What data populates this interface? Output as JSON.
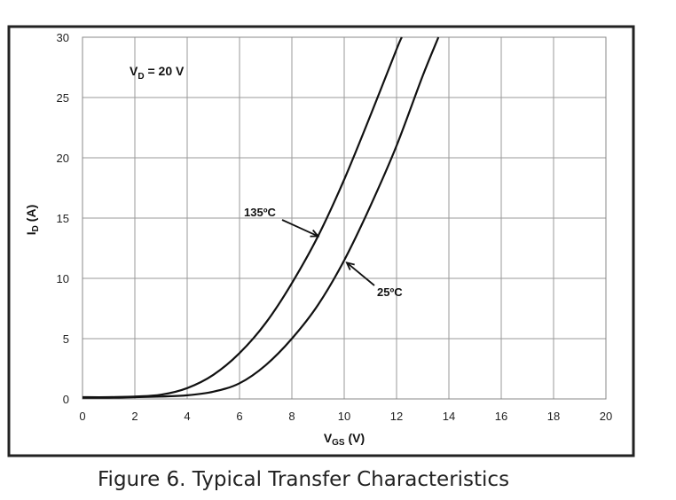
{
  "caption": "Figure 6. Typical Transfer Characteristics",
  "chart_data": {
    "type": "line",
    "title": "",
    "xlabel": "V",
    "xlabel_sub": "GS",
    "xlabel_unit": " (V)",
    "ylabel": "I",
    "ylabel_sub": "D",
    "ylabel_unit": " (A)",
    "xlim": [
      0,
      20
    ],
    "ylim": [
      0,
      30
    ],
    "xticks": [
      0,
      2,
      4,
      6,
      8,
      10,
      12,
      14,
      16,
      18,
      20
    ],
    "yticks": [
      0,
      5,
      10,
      15,
      20,
      25,
      30
    ],
    "grid": true,
    "condition": {
      "prefix": "V",
      "sub": "D",
      "text": " = 20 V"
    },
    "series": [
      {
        "name": "135ºC",
        "x": [
          0,
          1,
          2,
          3,
          4,
          5,
          6,
          7,
          8,
          9,
          10,
          11,
          12,
          12.2
        ],
        "y": [
          0.15,
          0.15,
          0.2,
          0.35,
          0.9,
          2.0,
          3.8,
          6.3,
          9.6,
          13.5,
          18.2,
          23.5,
          29.0,
          30.0
        ]
      },
      {
        "name": "25ºC",
        "x": [
          0,
          1,
          2,
          3,
          4,
          5,
          6,
          7,
          8,
          9,
          10,
          11,
          12,
          13,
          13.6
        ],
        "y": [
          0.1,
          0.1,
          0.15,
          0.2,
          0.3,
          0.6,
          1.3,
          2.8,
          5.0,
          7.8,
          11.5,
          16.0,
          21.0,
          26.8,
          30.0
        ]
      }
    ],
    "annotations": [
      {
        "text": "135ºC",
        "series": 0,
        "point": [
          9.0,
          13.5
        ]
      },
      {
        "text": "25ºC",
        "series": 1,
        "point": [
          10.1,
          11.3
        ]
      }
    ]
  }
}
